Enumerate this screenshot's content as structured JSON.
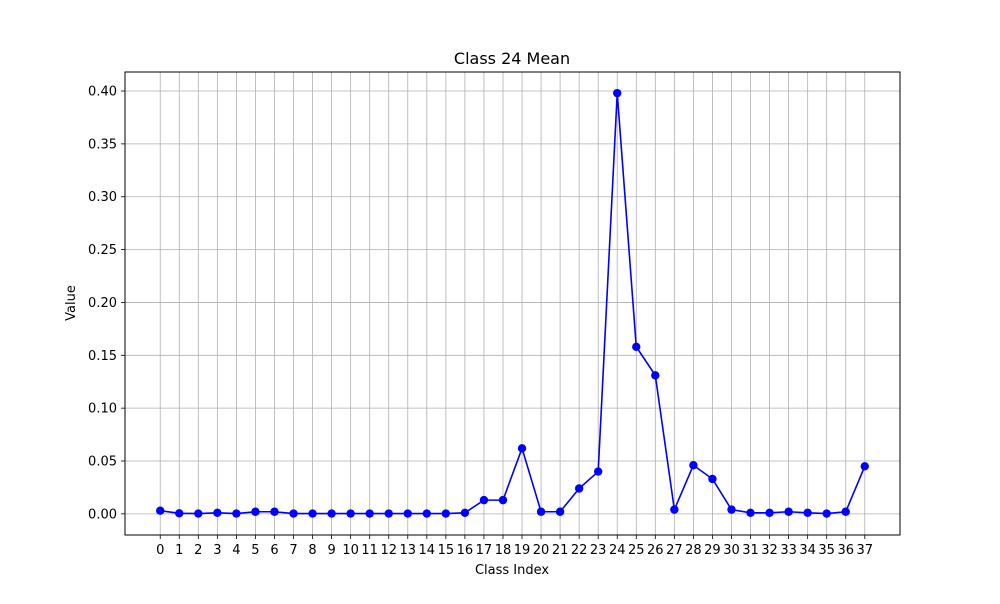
{
  "chart_data": {
    "type": "line",
    "title": "Class 24 Mean",
    "xlabel": "Class Index",
    "ylabel": "Value",
    "x": [
      0,
      1,
      2,
      3,
      4,
      5,
      6,
      7,
      8,
      9,
      10,
      11,
      12,
      13,
      14,
      15,
      16,
      17,
      18,
      19,
      20,
      21,
      22,
      23,
      24,
      25,
      26,
      27,
      28,
      29,
      30,
      31,
      32,
      33,
      34,
      35,
      36,
      37
    ],
    "x_tick_labels": [
      "0",
      "1",
      "2",
      "3",
      "4",
      "5",
      "6",
      "7",
      "8",
      "9",
      "10",
      "11",
      "12",
      "13",
      "14",
      "15",
      "16",
      "17",
      "18",
      "19",
      "20",
      "21",
      "22",
      "23",
      "24",
      "25",
      "26",
      "27",
      "28",
      "29",
      "30",
      "31",
      "32",
      "33",
      "34",
      "35",
      "36",
      "37"
    ],
    "y_ticks": [
      0.0,
      0.05,
      0.1,
      0.15,
      0.2,
      0.25,
      0.3,
      0.35,
      0.4
    ],
    "y_tick_labels": [
      "0.00",
      "0.05",
      "0.10",
      "0.15",
      "0.20",
      "0.25",
      "0.30",
      "0.35",
      "0.40"
    ],
    "xlim": [
      -1.85,
      38.85
    ],
    "ylim": [
      -0.02,
      0.418
    ],
    "grid": true,
    "series": [
      {
        "color": "#0000ff",
        "marker": "circle",
        "values": [
          0.003,
          0.0005,
          0.0003,
          0.001,
          0.0003,
          0.002,
          0.002,
          0.0003,
          0.0003,
          0.0003,
          0.0003,
          0.0003,
          0.0003,
          0.0003,
          0.0003,
          0.0003,
          0.001,
          0.013,
          0.013,
          0.062,
          0.002,
          0.002,
          0.024,
          0.04,
          0.398,
          0.158,
          0.131,
          0.004,
          0.046,
          0.033,
          0.004,
          0.001,
          0.001,
          0.002,
          0.001,
          0.0003,
          0.002,
          0.045
        ]
      }
    ]
  }
}
